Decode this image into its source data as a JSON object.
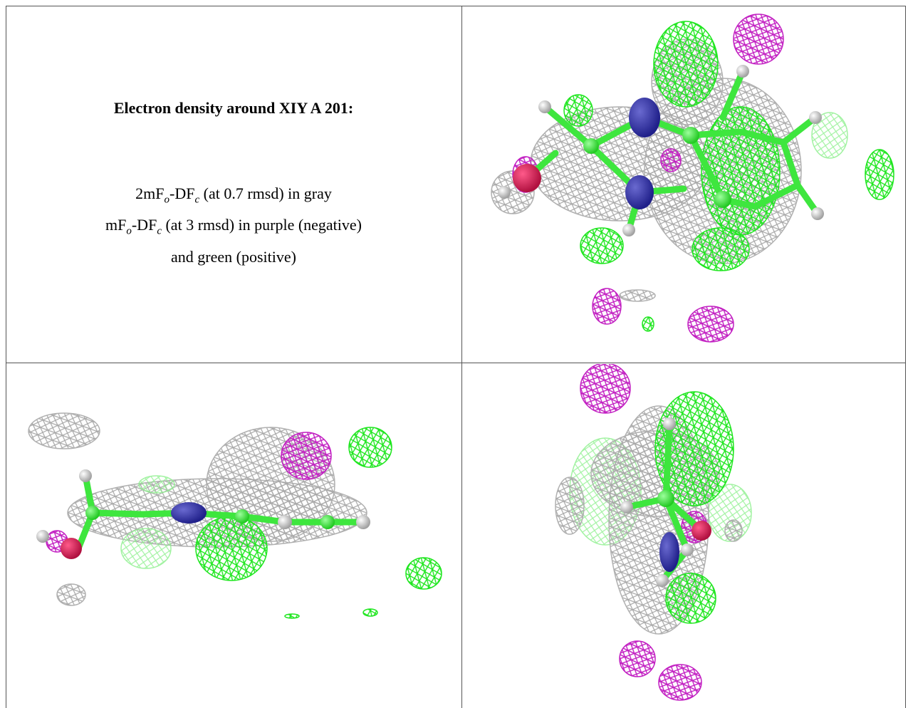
{
  "caption": {
    "title": "Electron density around XIY A 201:",
    "lines": [
      [
        {
          "text": "2mF"
        },
        {
          "sub": "o"
        },
        {
          "text": "-DF"
        },
        {
          "sub": "c"
        },
        {
          "text": " (at 0.7 rmsd) in gray"
        }
      ],
      [
        {
          "text": "mF"
        },
        {
          "sub": "o"
        },
        {
          "text": "-DF"
        },
        {
          "sub": "c"
        },
        {
          "text": " (at 3 rmsd) in purple (negative)"
        }
      ],
      [
        {
          "text": "and green (positive)"
        }
      ]
    ]
  }
}
